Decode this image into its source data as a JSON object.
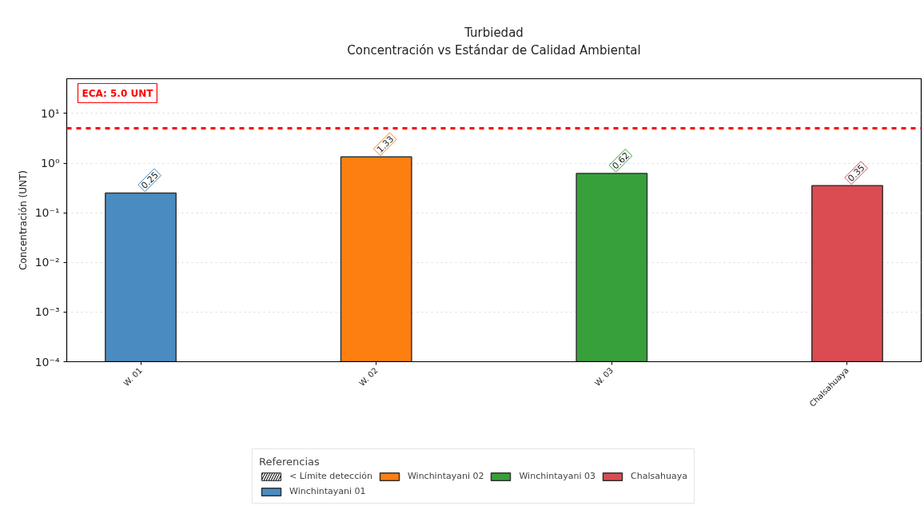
{
  "chart_data": {
    "type": "bar",
    "title": "Turbiedad",
    "subtitle": "Concentración vs Estándar de Calidad Ambiental",
    "ylabel": "Concentración (UNT)",
    "legend_title": "Referencias",
    "categories": [
      "W. 01",
      "W. 02",
      "W. 03",
      "Chalsahuaya"
    ],
    "series": [
      {
        "name": "< Límite detección",
        "color": "#222222",
        "values": [
          null,
          null,
          null,
          null
        ]
      },
      {
        "name": "Winchintayani 01",
        "color": "#4a8cc2",
        "values": [
          0.25,
          null,
          null,
          null
        ]
      },
      {
        "name": "Winchintayani 02",
        "color": "#fd7f10",
        "values": [
          null,
          1.33,
          null,
          null
        ]
      },
      {
        "name": "Winchintayani 03",
        "color": "#38a03a",
        "values": [
          null,
          null,
          0.62,
          null
        ]
      },
      {
        "name": "Chalsahuaya",
        "color": "#da4c51",
        "values": [
          null,
          null,
          null,
          0.35
        ]
      }
    ],
    "log": true,
    "ylim": [
      0.0001,
      50
    ],
    "yticks": [
      {
        "value": 0.0001,
        "label": "10⁻⁴"
      },
      {
        "value": 0.001,
        "label": "10⁻³"
      },
      {
        "value": 0.01,
        "label": "10⁻²"
      },
      {
        "value": 0.1,
        "label": "10⁻¹"
      },
      {
        "value": 1,
        "label": "10⁰"
      },
      {
        "value": 10,
        "label": "10¹"
      }
    ],
    "ref_lines": [
      {
        "axis": "y",
        "value": 5.0,
        "label": "ECA: 5.0 UNT",
        "color": "#ff0000",
        "line_style": "dashed"
      }
    ],
    "data_labels": true,
    "grid": "y",
    "legend": "bottom"
  }
}
